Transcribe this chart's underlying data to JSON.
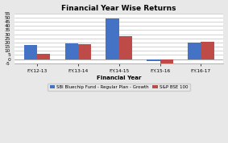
{
  "title": "Financial Year Wise Returns",
  "xlabel": "Financial Year",
  "ylabel": "",
  "categories": [
    "F.Y.12-13",
    "F.Y.13-14",
    "F.Y.14-15",
    "F.Y.15-16",
    "F.Y.16-17"
  ],
  "sbi_values": [
    17,
    19,
    49,
    -2,
    20
  ],
  "bse_values": [
    6,
    18,
    28,
    -5,
    21
  ],
  "sbi_color": "#4472C4",
  "bse_color": "#BE4B48",
  "sbi_label": "SBI Bluechip Fund - Regular Plan - Growth",
  "bse_label": "S&P BSE 100",
  "ylim": [
    -5,
    55
  ],
  "yticks": [
    -5,
    0,
    5,
    10,
    15,
    20,
    25,
    30,
    35,
    40,
    45,
    50,
    55
  ],
  "plot_bg": "#FFFFFF",
  "fig_bg": "#E8E8E8",
  "title_fontsize": 6.5,
  "axis_label_fontsize": 5.0,
  "tick_fontsize": 4.2,
  "legend_fontsize": 4.0,
  "bar_width": 0.32
}
